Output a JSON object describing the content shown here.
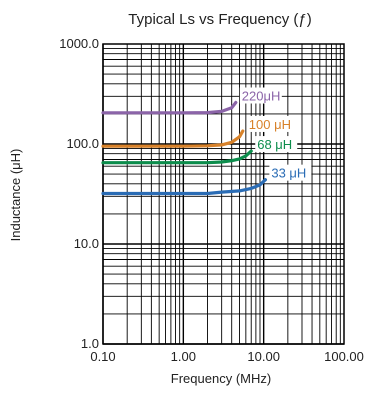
{
  "chart_data": {
    "type": "line",
    "title": "Typical Ls vs Frequency (ƒ)",
    "xlabel": "Frequency (MHz)",
    "ylabel": "Inductance (μH)",
    "x_scale": "log",
    "y_scale": "log",
    "xlim": [
      0.1,
      100
    ],
    "ylim": [
      1,
      1000
    ],
    "x_ticks": [
      {
        "value": 0.1,
        "label": "0.10"
      },
      {
        "value": 1,
        "label": "1.00"
      },
      {
        "value": 10,
        "label": "10.00"
      },
      {
        "value": 100,
        "label": "100.00"
      }
    ],
    "y_ticks": [
      {
        "value": 1,
        "label": "1.0"
      },
      {
        "value": 10,
        "label": "10.0"
      },
      {
        "value": 100,
        "label": "100.0"
      },
      {
        "value": 1000,
        "label": "1000.0"
      }
    ],
    "grid": true,
    "series": [
      {
        "name": "220μH",
        "color": "#8b64a8",
        "x": [
          0.1,
          0.5,
          1,
          2,
          3,
          4,
          4.5
        ],
        "y": [
          205,
          205,
          205,
          206,
          212,
          230,
          260
        ]
      },
      {
        "name": "100 μH",
        "color": "#d8822a",
        "x": [
          0.1,
          0.5,
          1,
          2,
          3,
          4,
          5,
          5.5
        ],
        "y": [
          95,
          95,
          95,
          96,
          98,
          104,
          118,
          135
        ]
      },
      {
        "name": "68 μH",
        "color": "#0c8d4c",
        "x": [
          0.1,
          0.5,
          1,
          2,
          3,
          4,
          5,
          6,
          7
        ],
        "y": [
          65,
          65,
          65,
          65,
          66,
          68,
          71,
          76,
          85
        ]
      },
      {
        "name": "33 μH",
        "color": "#2a6cb5",
        "x": [
          0.1,
          0.5,
          1,
          2,
          3,
          5,
          7,
          9,
          10.5
        ],
        "y": [
          32,
          32,
          32,
          32,
          33,
          34,
          36,
          39,
          44
        ]
      }
    ]
  }
}
